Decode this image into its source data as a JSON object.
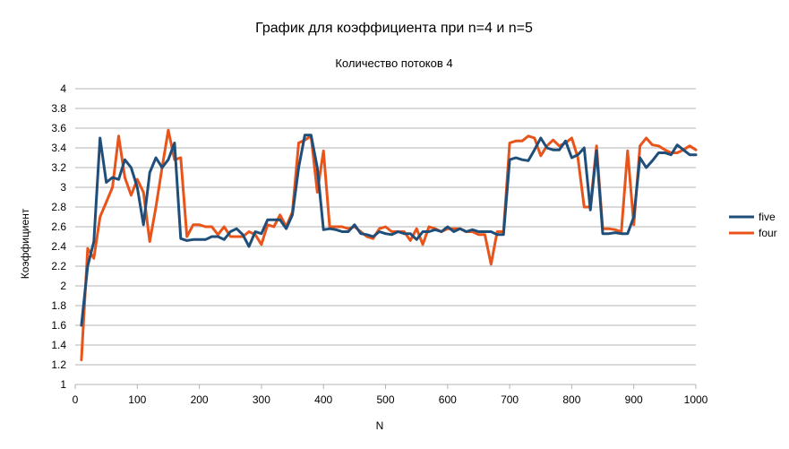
{
  "chart_data": {
    "type": "line",
    "title": "График для коэффициента при n=4 и n=5",
    "subtitle": "Количество потоков 4",
    "xlabel": "N",
    "ylabel": "Коэффициент",
    "xlim": [
      0,
      1000
    ],
    "ylim": [
      1,
      4
    ],
    "xticks": [
      "0",
      "100",
      "200",
      "300",
      "400",
      "500",
      "600",
      "700",
      "800",
      "900",
      "1000"
    ],
    "yticks": [
      "1",
      "1.2",
      "1.4",
      "1.6",
      "1.8",
      "2",
      "2.2",
      "2.4",
      "2.6",
      "2.8",
      "3",
      "3.2",
      "3.4",
      "3.6",
      "3.8",
      "4"
    ],
    "grid": "horizontal",
    "legend": "right",
    "x": [
      10,
      20,
      30,
      40,
      50,
      60,
      70,
      80,
      90,
      100,
      110,
      120,
      130,
      140,
      150,
      160,
      170,
      180,
      190,
      200,
      210,
      220,
      230,
      240,
      250,
      260,
      270,
      280,
      290,
      300,
      310,
      320,
      330,
      340,
      350,
      360,
      370,
      380,
      390,
      400,
      410,
      420,
      430,
      440,
      450,
      460,
      470,
      480,
      490,
      500,
      510,
      520,
      530,
      540,
      550,
      560,
      570,
      580,
      590,
      600,
      610,
      620,
      630,
      640,
      650,
      660,
      670,
      680,
      690,
      700,
      710,
      720,
      730,
      740,
      750,
      760,
      770,
      780,
      790,
      800,
      810,
      820,
      830,
      840,
      850,
      860,
      870,
      880,
      890,
      900,
      910,
      920,
      930,
      940,
      950,
      960,
      970,
      980,
      990,
      1000
    ],
    "series": [
      {
        "name": "five",
        "color": "#1f4e79",
        "values": [
          1.6,
          2.2,
          2.45,
          3.5,
          3.05,
          3.1,
          3.08,
          3.28,
          3.2,
          3.0,
          2.62,
          3.15,
          3.3,
          3.2,
          3.28,
          3.45,
          2.48,
          2.46,
          2.47,
          2.47,
          2.47,
          2.5,
          2.5,
          2.47,
          2.55,
          2.58,
          2.52,
          2.4,
          2.55,
          2.53,
          2.67,
          2.67,
          2.67,
          2.58,
          2.72,
          3.2,
          3.53,
          3.53,
          3.2,
          2.57,
          2.58,
          2.57,
          2.55,
          2.55,
          2.62,
          2.53,
          2.52,
          2.5,
          2.55,
          2.53,
          2.52,
          2.55,
          2.53,
          2.53,
          2.47,
          2.55,
          2.55,
          2.57,
          2.55,
          2.6,
          2.55,
          2.58,
          2.55,
          2.57,
          2.55,
          2.55,
          2.55,
          2.52,
          2.52,
          3.28,
          3.3,
          3.28,
          3.27,
          3.38,
          3.5,
          3.4,
          3.38,
          3.38,
          3.47,
          3.3,
          3.33,
          3.4,
          2.77,
          3.37,
          2.53,
          2.53,
          2.54,
          2.53,
          2.53,
          2.7,
          3.3,
          3.2,
          3.27,
          3.35,
          3.35,
          3.33,
          3.43,
          3.38,
          3.33,
          3.33
        ]
      },
      {
        "name": "four",
        "color": "#e8541a",
        "values": [
          1.25,
          2.38,
          2.28,
          2.7,
          2.85,
          3.0,
          3.52,
          3.1,
          2.92,
          3.08,
          2.95,
          2.45,
          2.8,
          3.2,
          3.58,
          3.28,
          3.3,
          2.5,
          2.62,
          2.62,
          2.6,
          2.6,
          2.52,
          2.6,
          2.5,
          2.5,
          2.5,
          2.55,
          2.52,
          2.42,
          2.62,
          2.6,
          2.72,
          2.6,
          2.75,
          3.45,
          3.48,
          3.52,
          2.95,
          3.37,
          2.6,
          2.6,
          2.6,
          2.58,
          2.6,
          2.55,
          2.5,
          2.48,
          2.58,
          2.6,
          2.55,
          2.55,
          2.55,
          2.46,
          2.58,
          2.42,
          2.6,
          2.58,
          2.55,
          2.58,
          2.58,
          2.58,
          2.55,
          2.55,
          2.52,
          2.52,
          2.22,
          2.55,
          2.55,
          3.45,
          3.47,
          3.47,
          3.52,
          3.5,
          3.32,
          3.42,
          3.48,
          3.42,
          3.45,
          3.5,
          3.3,
          2.8,
          2.8,
          3.42,
          2.58,
          2.58,
          2.57,
          2.55,
          3.37,
          2.62,
          3.42,
          3.5,
          3.43,
          3.42,
          3.38,
          3.35,
          3.35,
          3.38,
          3.42,
          3.38
        ]
      }
    ]
  }
}
